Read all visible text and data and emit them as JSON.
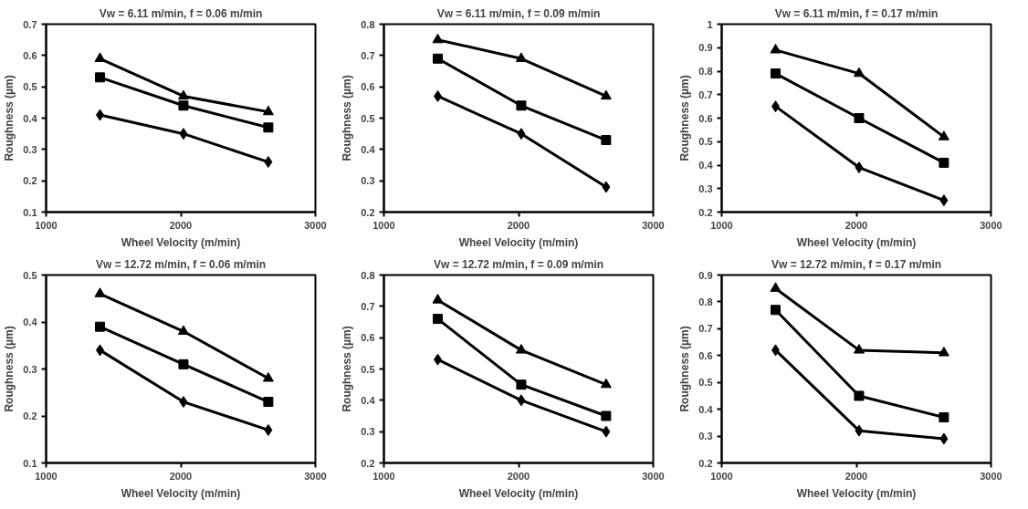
{
  "chart_data": [
    {
      "type": "line",
      "title": "Vw = 6.11 m/min, f = 0.06 m/min",
      "xlabel": "Wheel Velocity (m/min)",
      "ylabel": "Roughness (µm)",
      "x": [
        1400,
        2020,
        2650
      ],
      "xlim": [
        1000,
        3000
      ],
      "xticks": [
        1000,
        2000,
        3000
      ],
      "ylim": [
        0.1,
        0.7
      ],
      "yticks": [
        0.1,
        0.2,
        0.3,
        0.4,
        0.5,
        0.6,
        0.7
      ],
      "series": [
        {
          "color": "#000000",
          "marker": "diamond",
          "values": [
            0.41,
            0.35,
            0.26
          ]
        },
        {
          "color": "#000000",
          "marker": "square",
          "values": [
            0.53,
            0.44,
            0.37
          ]
        },
        {
          "color": "#000000",
          "marker": "triangle",
          "values": [
            0.59,
            0.47,
            0.42
          ]
        }
      ]
    },
    {
      "type": "line",
      "title": "Vw = 6.11 m/min, f = 0.09 m/min",
      "xlabel": "Wheel Velocity (m/min)",
      "ylabel": "Roughness (µm)",
      "x": [
        1400,
        2020,
        2650
      ],
      "xlim": [
        1000,
        3000
      ],
      "xticks": [
        1000,
        2000,
        3000
      ],
      "ylim": [
        0.2,
        0.8
      ],
      "yticks": [
        0.2,
        0.3,
        0.4,
        0.5,
        0.6,
        0.7,
        0.8
      ],
      "series": [
        {
          "color": "#000000",
          "marker": "diamond",
          "values": [
            0.57,
            0.45,
            0.28
          ]
        },
        {
          "color": "#000000",
          "marker": "square",
          "values": [
            0.69,
            0.54,
            0.43
          ]
        },
        {
          "color": "#000000",
          "marker": "triangle",
          "values": [
            0.75,
            0.69,
            0.57
          ]
        }
      ]
    },
    {
      "type": "line",
      "title": "Vw = 6.11 m/min, f = 0.17 m/min",
      "xlabel": "Wheel Velocity (m/min)",
      "ylabel": "Roughness (µm)",
      "x": [
        1400,
        2020,
        2650
      ],
      "xlim": [
        1000,
        3000
      ],
      "xticks": [
        1000,
        2000,
        3000
      ],
      "ylim": [
        0.2,
        1
      ],
      "yticks": [
        0.2,
        0.3,
        0.4,
        0.5,
        0.6,
        0.7,
        0.8,
        0.9,
        1
      ],
      "series": [
        {
          "color": "#000000",
          "marker": "diamond",
          "values": [
            0.65,
            0.39,
            0.25
          ]
        },
        {
          "color": "#000000",
          "marker": "square",
          "values": [
            0.79,
            0.6,
            0.41
          ]
        },
        {
          "color": "#000000",
          "marker": "triangle",
          "values": [
            0.89,
            0.79,
            0.52
          ]
        }
      ]
    },
    {
      "type": "line",
      "title": "Vw = 12.72 m/min, f = 0.06 m/min",
      "xlabel": "Wheel Velocity (m/min)",
      "ylabel": "Roughness (µm)",
      "x": [
        1400,
        2020,
        2650
      ],
      "xlim": [
        1000,
        3000
      ],
      "xticks": [
        1000,
        2000,
        3000
      ],
      "ylim": [
        0.1,
        0.5
      ],
      "yticks": [
        0.1,
        0.2,
        0.3,
        0.4,
        0.5
      ],
      "series": [
        {
          "color": "#000000",
          "marker": "diamond",
          "values": [
            0.34,
            0.23,
            0.17
          ]
        },
        {
          "color": "#000000",
          "marker": "square",
          "values": [
            0.39,
            0.31,
            0.23
          ]
        },
        {
          "color": "#000000",
          "marker": "triangle",
          "values": [
            0.46,
            0.38,
            0.28
          ]
        }
      ]
    },
    {
      "type": "line",
      "title": "Vw = 12.72 m/min, f = 0.09 m/min",
      "xlabel": "Wheel Velocity (m/min)",
      "ylabel": "Roughness (µm)",
      "x": [
        1400,
        2020,
        2650
      ],
      "xlim": [
        1000,
        3000
      ],
      "xticks": [
        1000,
        2000,
        3000
      ],
      "ylim": [
        0.2,
        0.8
      ],
      "yticks": [
        0.2,
        0.3,
        0.4,
        0.5,
        0.6,
        0.7,
        0.8
      ],
      "series": [
        {
          "color": "#000000",
          "marker": "diamond",
          "values": [
            0.53,
            0.4,
            0.3
          ]
        },
        {
          "color": "#000000",
          "marker": "square",
          "values": [
            0.66,
            0.45,
            0.35
          ]
        },
        {
          "color": "#000000",
          "marker": "triangle",
          "values": [
            0.72,
            0.56,
            0.45
          ]
        }
      ]
    },
    {
      "type": "line",
      "title": "Vw = 12.72 m/min, f = 0.17 m/min",
      "xlabel": "Wheel Velocity (m/min)",
      "ylabel": "Roughness (µm)",
      "x": [
        1400,
        2020,
        2650
      ],
      "xlim": [
        1000,
        3000
      ],
      "xticks": [
        1000,
        2000,
        3000
      ],
      "ylim": [
        0.2,
        0.9
      ],
      "yticks": [
        0.2,
        0.3,
        0.4,
        0.5,
        0.6,
        0.7,
        0.8,
        0.9
      ],
      "series": [
        {
          "color": "#000000",
          "marker": "diamond",
          "values": [
            0.62,
            0.32,
            0.29
          ]
        },
        {
          "color": "#000000",
          "marker": "square",
          "values": [
            0.77,
            0.45,
            0.37
          ]
        },
        {
          "color": "#000000",
          "marker": "triangle",
          "values": [
            0.85,
            0.62,
            0.61
          ]
        }
      ]
    }
  ]
}
